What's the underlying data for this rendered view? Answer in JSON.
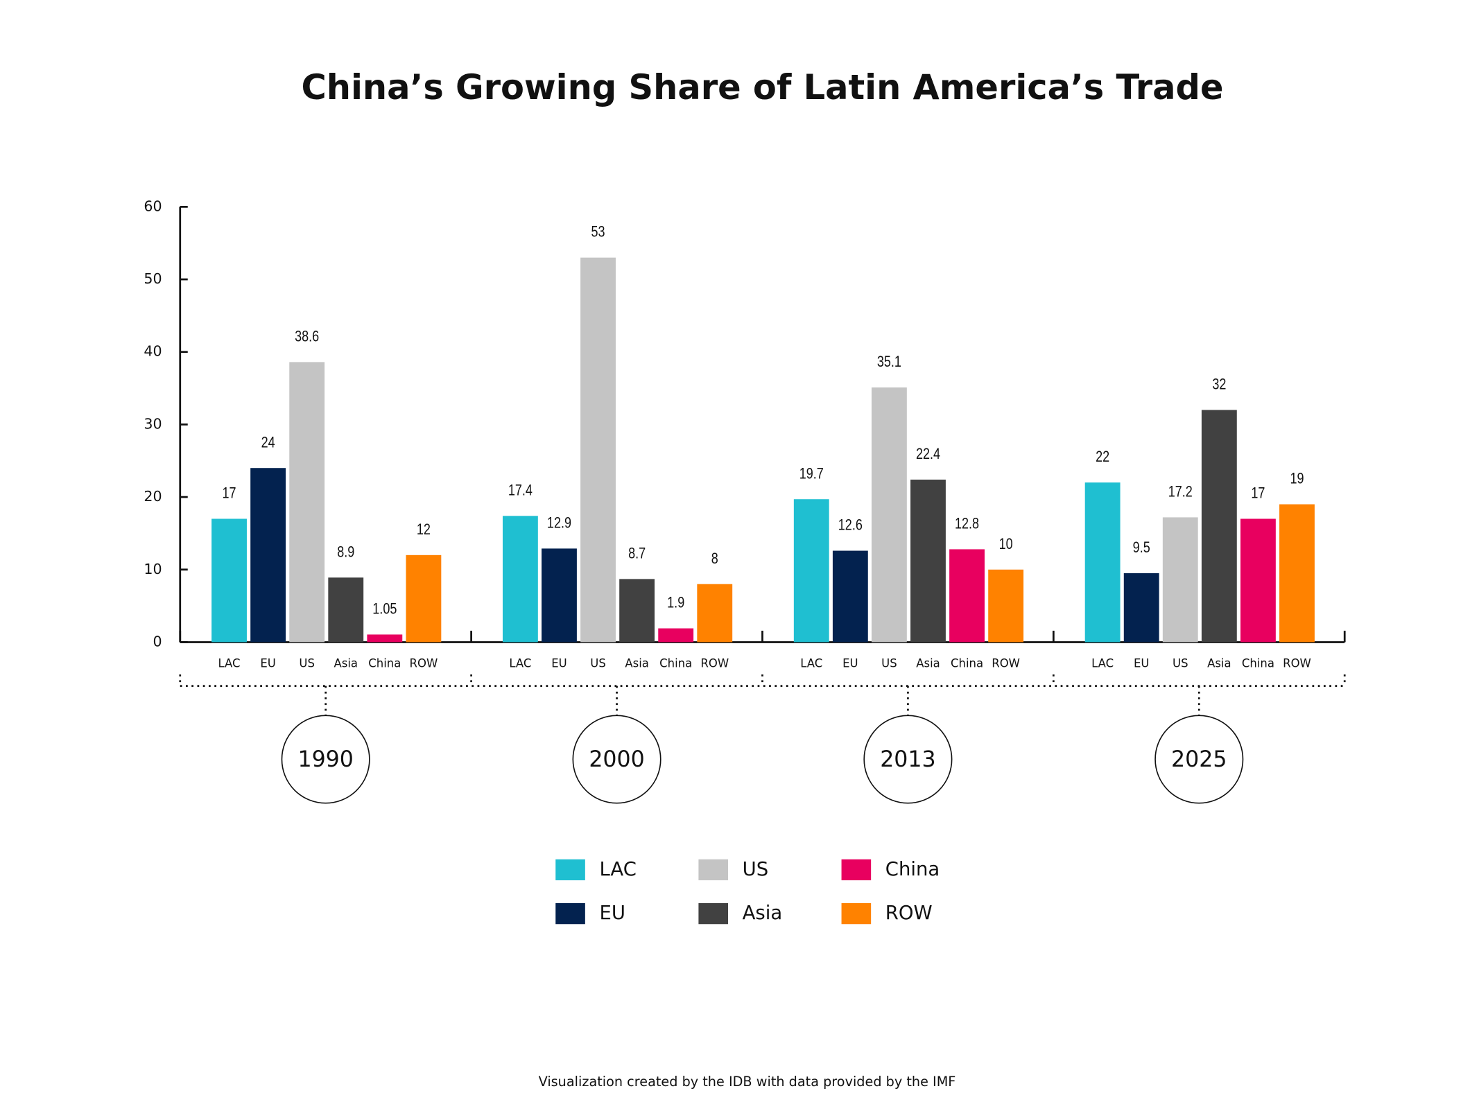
{
  "chart_data": {
    "type": "bar",
    "title": "China’s Growing Share of Latin America’s Trade",
    "categories": [
      "1990",
      "2000",
      "2013",
      "2025"
    ],
    "series": [
      {
        "name": "LAC",
        "color": "#1fbfd1",
        "values": [
          17,
          17.4,
          19.7,
          22
        ]
      },
      {
        "name": "EU",
        "color": "#03224f",
        "values": [
          24,
          12.9,
          12.6,
          9.5
        ]
      },
      {
        "name": "US",
        "color": "#c4c4c4",
        "values": [
          38.6,
          53,
          35.1,
          17.2
        ]
      },
      {
        "name": "Asia",
        "color": "#414141",
        "values": [
          8.9,
          8.7,
          22.4,
          32
        ]
      },
      {
        "name": "China",
        "color": "#e8005f",
        "values": [
          1.05,
          1.9,
          12.8,
          17
        ]
      },
      {
        "name": "ROW",
        "color": "#ff8200",
        "values": [
          12,
          8,
          10,
          19
        ]
      }
    ],
    "ylim": [
      0,
      60
    ],
    "yticks": [
      0,
      10,
      20,
      30,
      40,
      50,
      60
    ],
    "footnote": "Visualization created by the IDB with data provided by the IMF"
  }
}
